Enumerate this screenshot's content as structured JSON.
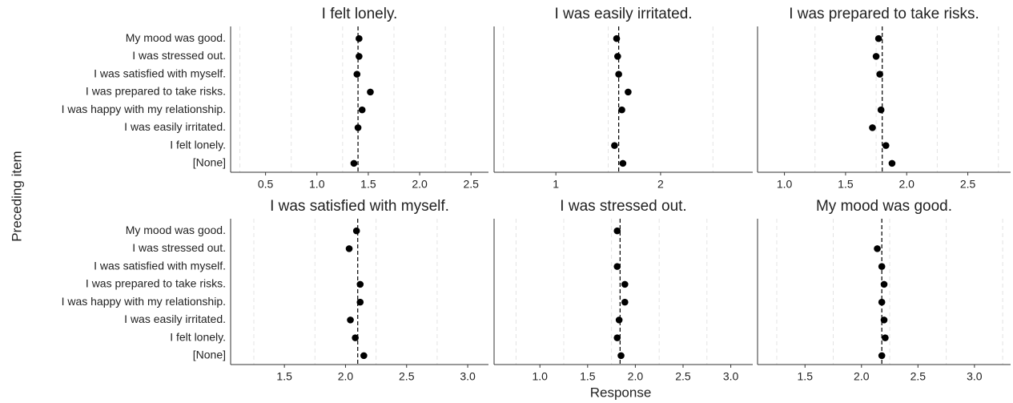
{
  "x_label": "Response",
  "y_label": "Preceding item",
  "chart_data": [
    {
      "type": "scatter",
      "title": "I felt lonely.",
      "categories": [
        "My mood was good.",
        "I was stressed out.",
        "I was satisfied with myself.",
        "I was prepared to take risks.",
        "I was happy with my relationship.",
        "I was easily irritated.",
        "I felt lonely.",
        "[None]"
      ],
      "values": [
        1.41,
        1.41,
        1.39,
        1.52,
        1.44,
        1.4,
        null,
        1.36
      ],
      "reference": 1.4,
      "color": "#000000",
      "xlim": [
        0.16,
        2.67
      ],
      "xticks": [
        0.5,
        {
          "value": 1,
          "label": "1.0"
        },
        1.5,
        {
          "value": 2,
          "label": "2.0"
        },
        2.5
      ],
      "xminor": [
        0.25,
        0.75,
        1.25,
        1.75,
        2.25
      ]
    },
    {
      "type": "scatter",
      "title": "I was easily irritated.",
      "values": [
        1.58,
        1.59,
        1.6,
        1.69,
        1.63,
        null,
        1.56,
        1.64
      ],
      "reference": 1.6,
      "color": "#000000",
      "xlim": [
        0.41,
        2.88
      ],
      "xticks": [
        1,
        2
      ],
      "xminor": [
        0.5,
        1.5,
        2.5
      ]
    },
    {
      "type": "scatter",
      "title": "I was prepared to take risks.",
      "values": [
        1.77,
        1.75,
        1.78,
        null,
        1.79,
        1.72,
        1.83,
        1.88
      ],
      "reference": 1.8,
      "color": "#000000",
      "xlim": [
        0.78,
        2.85
      ],
      "xticks": [
        {
          "value": 1,
          "label": "1.0"
        },
        1.5,
        {
          "value": 2,
          "label": "2.0"
        },
        2.5
      ],
      "xminor": [
        1.25,
        1.75,
        2.25,
        2.75
      ]
    },
    {
      "type": "scatter",
      "title": "I was satisfied with myself.",
      "categories": [
        "My mood was good.",
        "I was stressed out.",
        "I was satisfied with myself.",
        "I was prepared to take risks.",
        "I was happy with my relationship.",
        "I was easily irritated.",
        "I felt lonely.",
        "[None]"
      ],
      "values": [
        2.09,
        2.03,
        null,
        2.12,
        2.12,
        2.04,
        2.08,
        2.15
      ],
      "reference": 2.1,
      "color": "#000000",
      "xlim": [
        1.06,
        3.17
      ],
      "xticks": [
        1.5,
        {
          "value": 2,
          "label": "2.0"
        },
        2.5,
        {
          "value": 3,
          "label": "3.0"
        }
      ],
      "xminor": [
        1.25,
        1.75,
        2.25,
        2.75
      ]
    },
    {
      "type": "scatter",
      "title": "I was stressed out.",
      "values": [
        1.81,
        null,
        1.81,
        1.89,
        1.89,
        1.83,
        1.81,
        1.85
      ],
      "reference": 1.84,
      "color": "#000000",
      "xlim": [
        0.52,
        3.23
      ],
      "xticks": [
        {
          "value": 1,
          "label": "1.0"
        },
        1.5,
        {
          "value": 2,
          "label": "2.0"
        },
        2.5,
        {
          "value": 3,
          "label": "3.0"
        }
      ],
      "xminor": [
        0.75,
        1.25,
        1.75,
        2.25,
        2.75
      ]
    },
    {
      "type": "scatter",
      "title": "My mood was good.",
      "values": [
        null,
        2.14,
        2.18,
        2.2,
        2.18,
        2.2,
        2.21,
        2.18
      ],
      "reference": 2.18,
      "color": "#000000",
      "xlim": [
        1.08,
        3.32
      ],
      "xticks": [
        1.5,
        {
          "value": 2,
          "label": "2.0"
        },
        2.5,
        {
          "value": 3,
          "label": "3.0"
        }
      ],
      "xminor": [
        1.25,
        1.75,
        2.25,
        2.75,
        3.25
      ]
    }
  ]
}
